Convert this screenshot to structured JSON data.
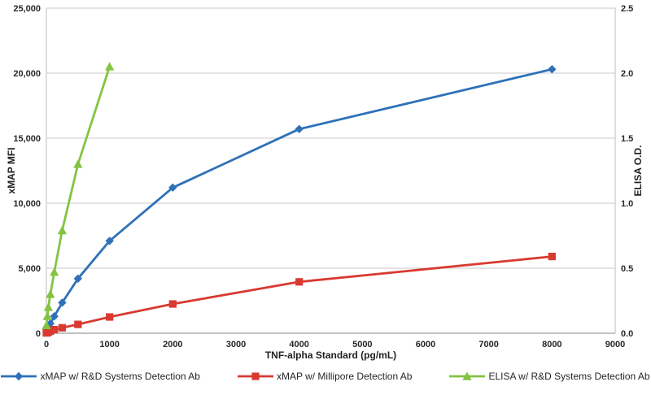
{
  "chart_data": {
    "type": "line",
    "title": "",
    "grid": "horizontal",
    "legend_position": "bottom",
    "x_axis": {
      "label": "TNF-alpha Standard (pg/mL)",
      "min": 0,
      "max": 9000,
      "tick_step": 1000,
      "tick_labels": [
        "0",
        "1000",
        "2000",
        "3000",
        "4000",
        "5000",
        "6000",
        "7000",
        "8000",
        "9000"
      ]
    },
    "y_left": {
      "label": "xMAP MFI",
      "min": 0,
      "max": 25000,
      "tick_step": 5000,
      "tick_labels": [
        "0",
        "5,000",
        "10,000",
        "15,000",
        "20,000",
        "25,000"
      ]
    },
    "y_right": {
      "label": "ELISA O.D.",
      "min": 0,
      "max": 2.5,
      "tick_step": 0.5,
      "tick_labels": [
        "0.0",
        "0.5",
        "1.0",
        "1.5",
        "2.0",
        "2.5"
      ]
    },
    "series": [
      {
        "name": "xMAP w/ R&D Systems Detection Ab",
        "axis": "left",
        "color": "#2E71B8",
        "marker": "diamond",
        "x": [
          0,
          15.6,
          31.25,
          62.5,
          125,
          250,
          500,
          1000,
          2000,
          4000,
          8000
        ],
        "y": [
          60,
          200,
          400,
          750,
          1300,
          2350,
          4200,
          7100,
          11200,
          15700,
          20300
        ]
      },
      {
        "name": "xMAP w/ Millipore Detection Ab",
        "axis": "left",
        "color": "#D83A31",
        "marker": "square",
        "x": [
          0,
          15.6,
          31.25,
          62.5,
          125,
          250,
          500,
          1000,
          2000,
          4000,
          8000
        ],
        "y": [
          25,
          50,
          90,
          160,
          280,
          420,
          680,
          1250,
          2250,
          3950,
          5900
        ]
      },
      {
        "name": "ELISA w/ R&D Systems Detection Ab",
        "axis": "right",
        "color": "#83C441",
        "marker": "triangle",
        "x": [
          0,
          15.6,
          31.25,
          62.5,
          125,
          250,
          500,
          1000
        ],
        "y": [
          0.06,
          0.13,
          0.2,
          0.3,
          0.47,
          0.79,
          1.3,
          2.05
        ]
      }
    ],
    "colors": {
      "grid": "#C9C9C9",
      "axis": "#9E9E9E",
      "border": "#BFBFBF",
      "text": "#262626"
    }
  }
}
